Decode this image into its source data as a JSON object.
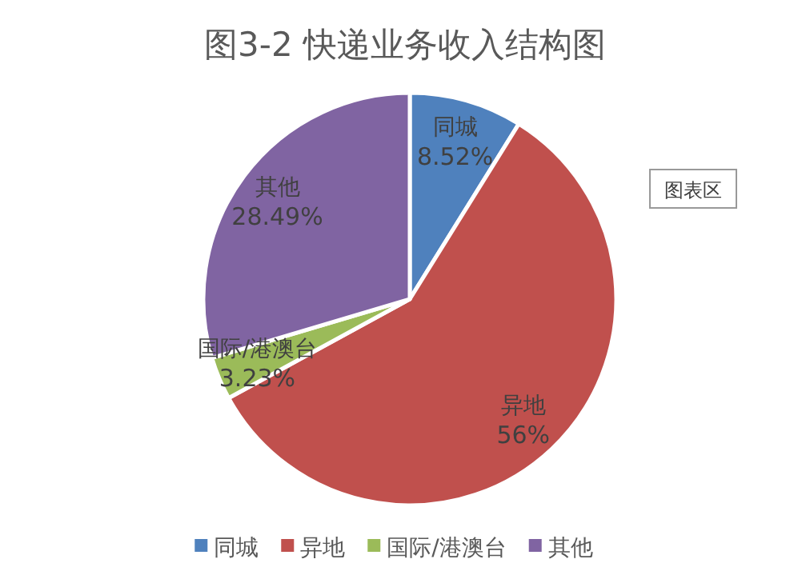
{
  "chart_data": {
    "type": "pie",
    "title": "图3-2  快递业务收入结构图",
    "categories": [
      "同城",
      "异地",
      "国际/港澳台",
      "其他"
    ],
    "values": [
      8.52,
      56,
      3.23,
      28.49
    ],
    "colors": [
      "#4f81bd",
      "#c0504d",
      "#9bbb59",
      "#8064a2"
    ],
    "value_labels": [
      "8.52%",
      "56%",
      "3.23%",
      "28.49%"
    ],
    "legend": "bottom",
    "annotations": [
      "图表区"
    ]
  }
}
